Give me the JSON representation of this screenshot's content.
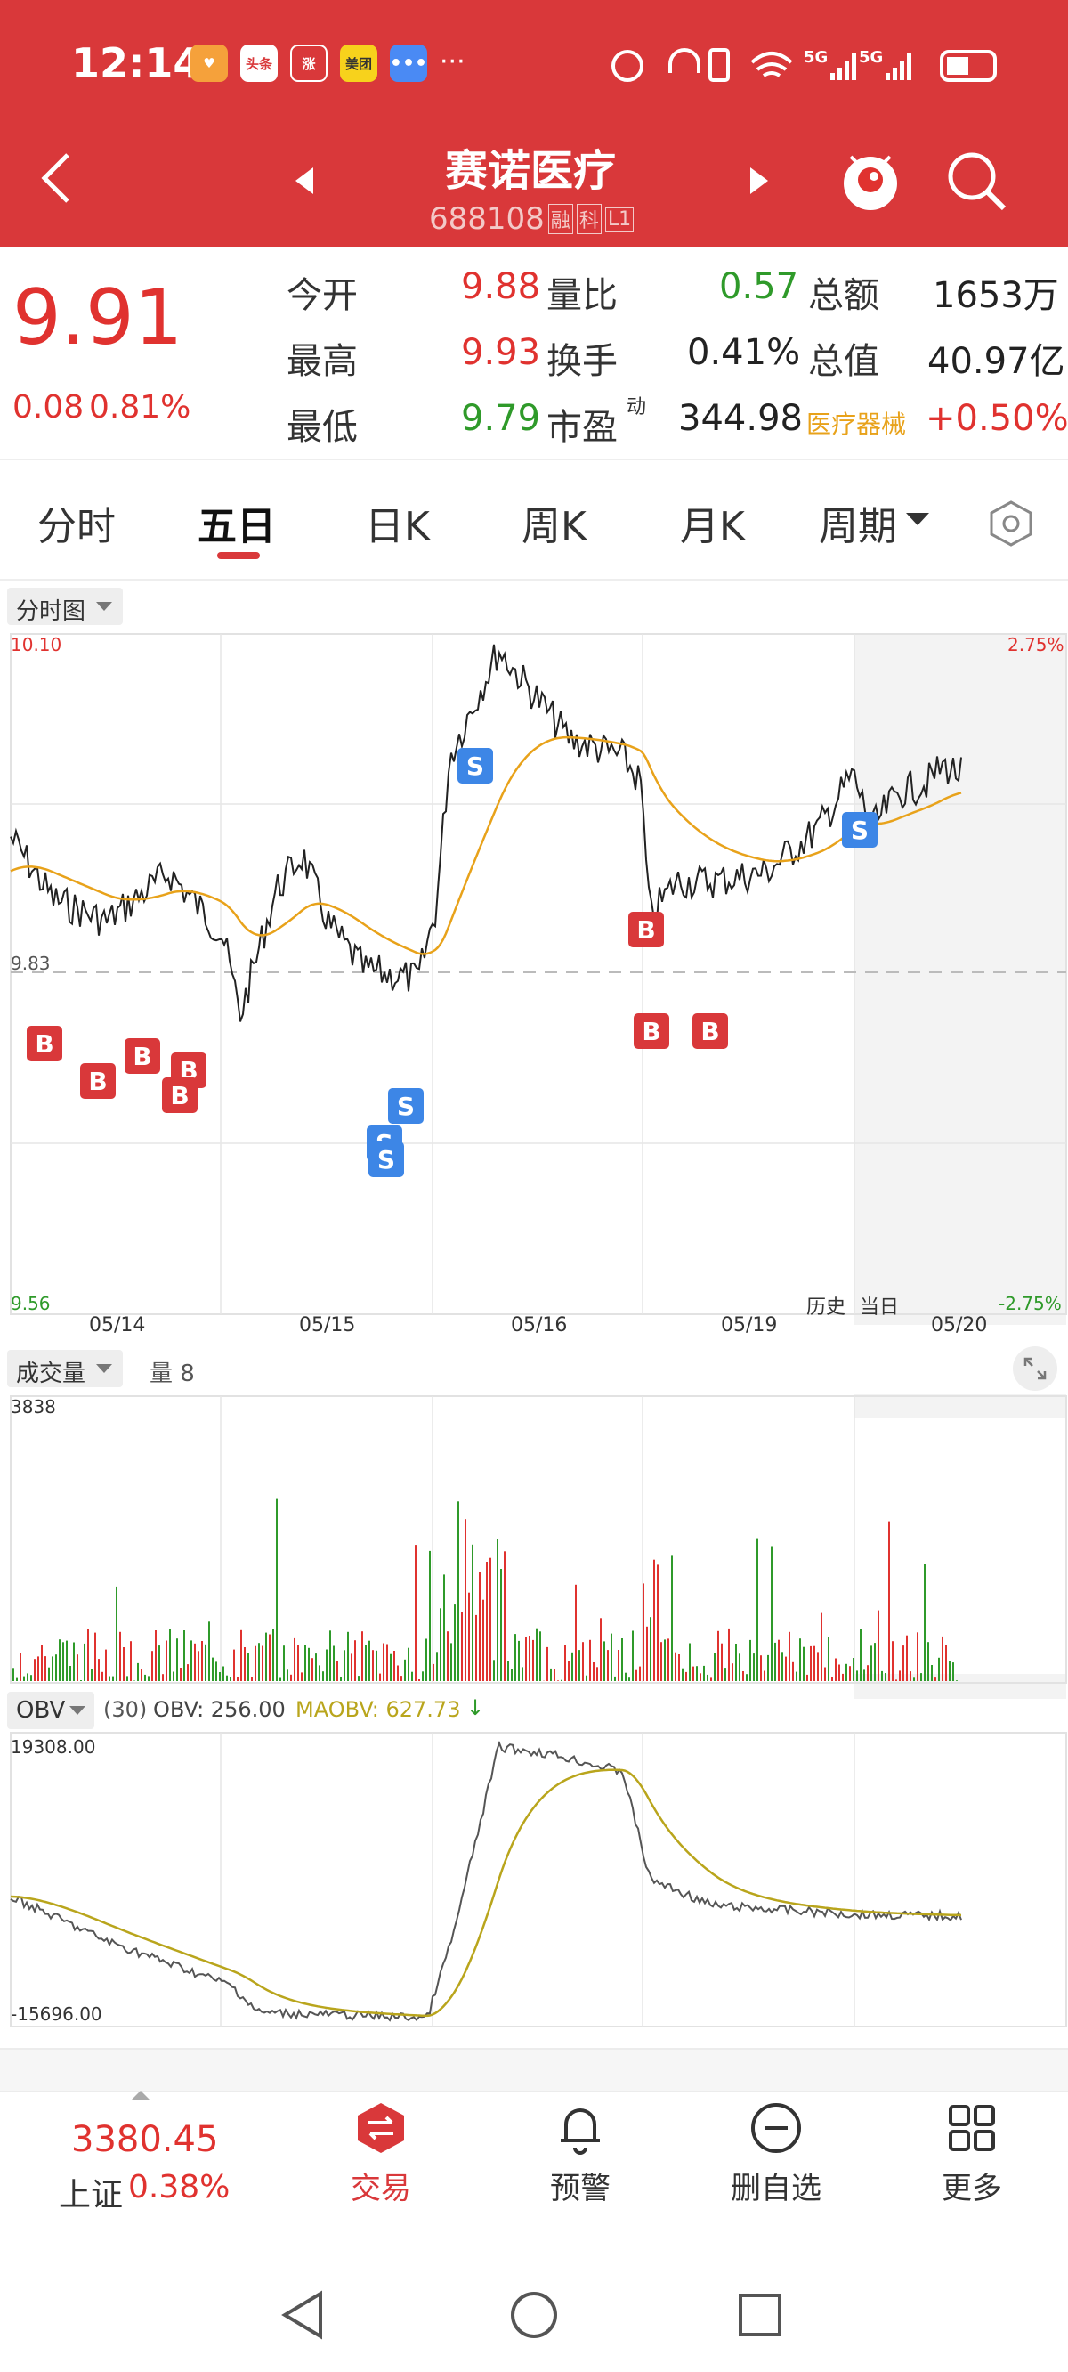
{
  "status_bar": {
    "time": "12:14",
    "app_icons": [
      "头条",
      "涨",
      "美团"
    ],
    "network": "5G"
  },
  "header": {
    "title": "赛诺医疗",
    "code": "688108",
    "badges": [
      "融",
      "科",
      "L1"
    ]
  },
  "quote": {
    "price": "9.91",
    "change": "0.08",
    "change_pct": "0.81%",
    "open_label": "今开",
    "open": "9.88",
    "high_label": "最高",
    "high": "9.93",
    "low_label": "最低",
    "low": "9.79",
    "vol_ratio_label": "量比",
    "vol_ratio": "0.57",
    "turnover_label": "换手",
    "turnover": "0.41%",
    "pe_label": "市盈",
    "pe_sup": "动",
    "pe": "344.98",
    "amount_label": "总额",
    "amount": "1653万",
    "mktcap_label": "总值",
    "mktcap": "40.97亿",
    "sector": "医疗器械",
    "sector_change": "+0.50%"
  },
  "tabs": [
    "分时",
    "五日",
    "日K",
    "周K",
    "月K",
    "周期"
  ],
  "active_tab": 1,
  "chart": {
    "selector_label": "分时图",
    "y_max": "10.10",
    "y_min": "9.56",
    "y_ref": "9.83",
    "pct_max": "2.75%",
    "pct_min": "-2.75%",
    "dates": [
      "05/14",
      "05/15",
      "05/16",
      "05/19",
      "05/20"
    ],
    "history_label": "历史",
    "today_label": "当日",
    "colors": {
      "price": "#222222",
      "avg": "#e8a21a",
      "up": "#e0322f",
      "down": "#2f9a2a"
    }
  },
  "volume": {
    "selector_label": "成交量",
    "qty_label": "量 8",
    "max": "3838"
  },
  "obv": {
    "selector_label": "OBV",
    "params": "(30)",
    "obv_label": "OBV: 256.00",
    "maobv_label": "MAOBV: 627.73",
    "max": "19308.00",
    "min": "-15696.00"
  },
  "bottom_nav": {
    "index_value": "3380.45",
    "index_name": "上证",
    "index_change": "0.38%",
    "items": [
      {
        "label": "交易",
        "icon": "trade-icon"
      },
      {
        "label": "预警",
        "icon": "bell-icon"
      },
      {
        "label": "删自选",
        "icon": "minus-circle-icon"
      },
      {
        "label": "更多",
        "icon": "grid-icon"
      }
    ]
  }
}
